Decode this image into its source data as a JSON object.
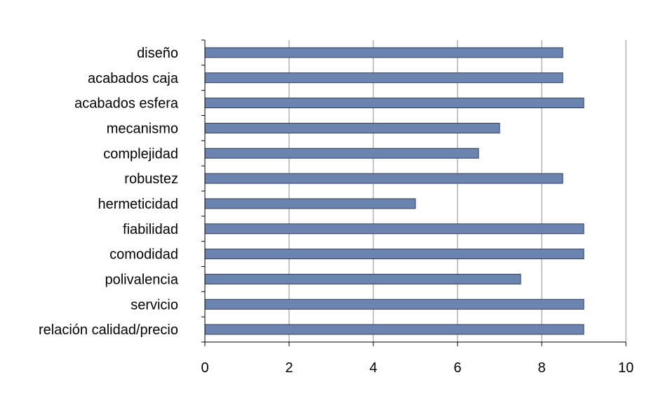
{
  "chart_data": {
    "type": "bar",
    "orientation": "horizontal",
    "categories": [
      "diseño",
      "acabados caja",
      "acabados esfera",
      "mecanismo",
      "complejidad",
      "robustez",
      "hermeticidad",
      "fiabilidad",
      "comodidad",
      "polivalencia",
      "servicio",
      "relación calidad/precio"
    ],
    "values": [
      8.5,
      8.5,
      9,
      7,
      6.5,
      8.5,
      5,
      9,
      9,
      7.5,
      9,
      9
    ],
    "xlim": [
      0,
      10
    ],
    "xticks": [
      "0",
      "2",
      "4",
      "6",
      "8",
      "10"
    ],
    "grid": "vertical",
    "legend": "none",
    "colors": {
      "bar_fill": "#6b84b0",
      "bar_stroke": "#2e3c59",
      "grid": "#8c8c8c",
      "axis": "#000000"
    }
  }
}
